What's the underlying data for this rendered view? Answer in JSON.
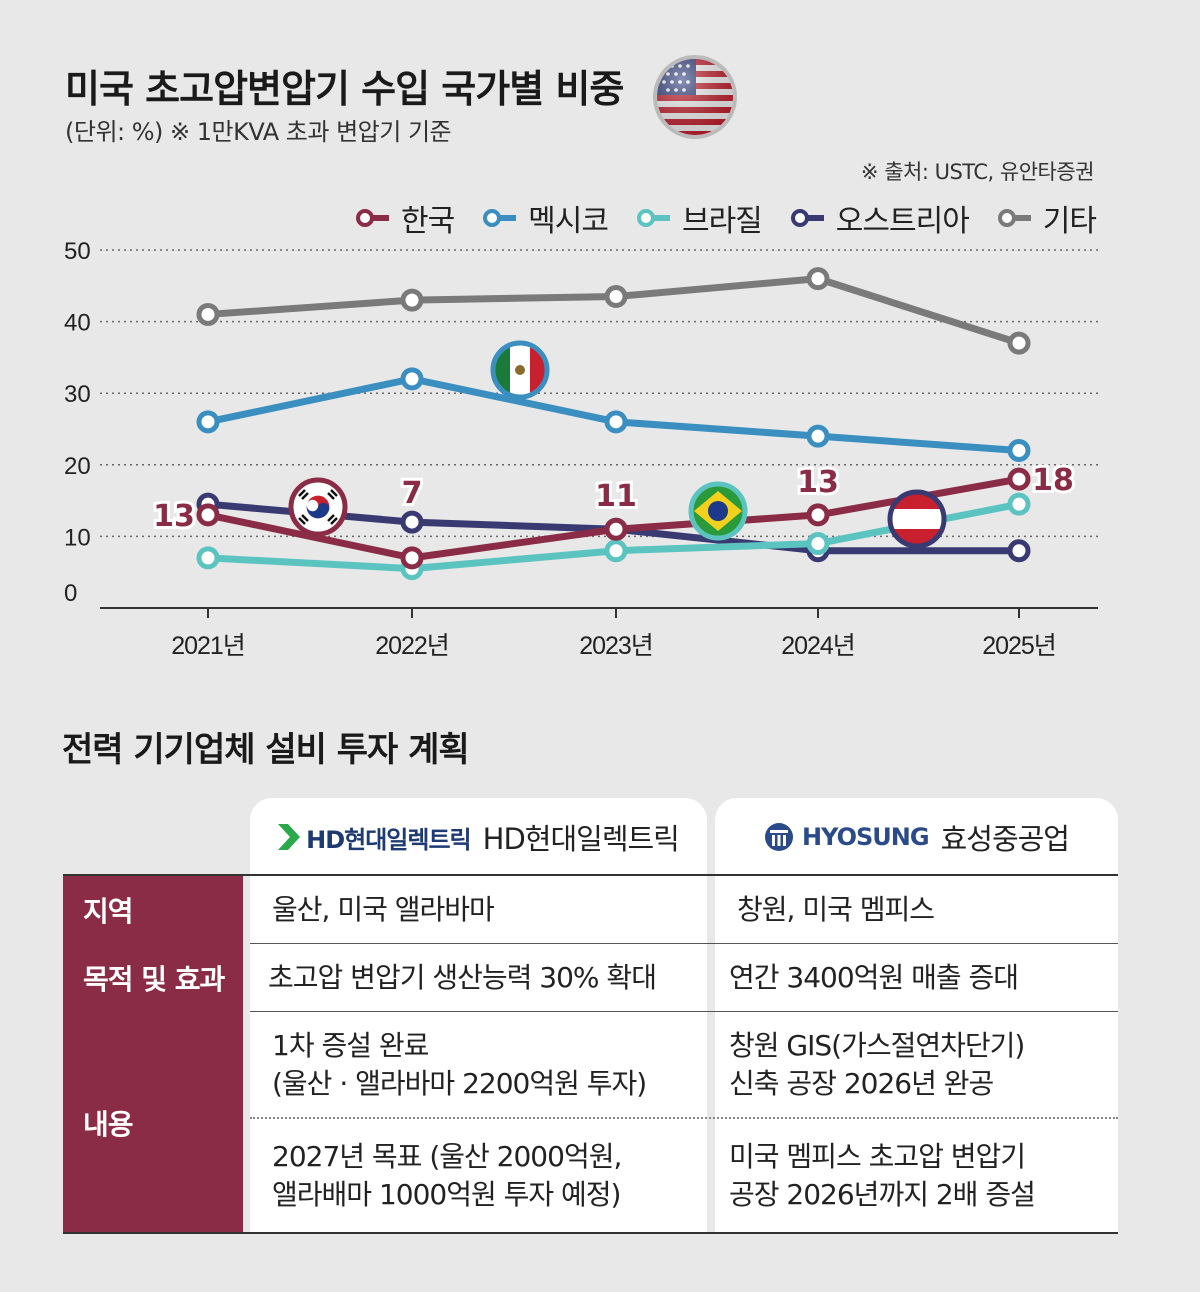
{
  "title": "미국 초고압변압기 수입 국가별 비중",
  "subtitle": "(단위: %) ※ 1만KVA 초과 변압기 기준",
  "source": "※ 출처: USTC, 유안타증권",
  "chart_data": {
    "type": "line",
    "categories": [
      "2021년",
      "2022년",
      "2023년",
      "2024년",
      "2025년"
    ],
    "ylim": [
      0,
      50
    ],
    "yticks": [
      "0",
      "10",
      "20",
      "30",
      "40",
      "50"
    ],
    "grid": true,
    "legend_position": "top-right",
    "series": [
      {
        "name": "한국",
        "color": "#8b2c46",
        "values": [
          13,
          7,
          11,
          13,
          18
        ],
        "labels": [
          "13",
          "7",
          "11",
          "13",
          "18"
        ]
      },
      {
        "name": "멕시코",
        "color": "#3a8fc0",
        "values": [
          26,
          32,
          26,
          24,
          22
        ]
      },
      {
        "name": "브라질",
        "color": "#5cc4c0",
        "values": [
          7,
          5.5,
          8,
          9,
          14.5
        ]
      },
      {
        "name": "오스트리아",
        "color": "#3a3a72",
        "values": [
          14.5,
          12,
          11,
          8,
          8
        ]
      },
      {
        "name": "기타",
        "color": "#7a7a7a",
        "values": [
          41,
          43,
          43.5,
          46,
          37
        ]
      }
    ]
  },
  "table": {
    "title": "전력 기기업체 설비 투자 계획",
    "companies": [
      {
        "logo": "HD현대일렉트릭",
        "logo_prefix": "HD",
        "name": "HD현대일렉트릭"
      },
      {
        "logo": "HYOSUNG",
        "name": "효성중공업"
      }
    ],
    "rows": {
      "region": {
        "label": "지역",
        "c1": "울산, 미국 앨라바마",
        "c2": "창원, 미국 멤피스"
      },
      "purpose": {
        "label": "목적 및 효과",
        "c1": "초고압 변압기 생산능력 30% 확대",
        "c2": "연간 3400억원 매출 증대"
      },
      "content": {
        "label": "내용",
        "c1a": [
          "1차 증설 완료",
          "(울산 · 앨라바마 2200억원 투자)"
        ],
        "c2a": [
          "창원 GIS(가스절연차단기)",
          "신축 공장 2026년 완공"
        ],
        "c1b": [
          "2027년 목표 (울산 2000억원,",
          "앨라배마 1000억원 투자 예정)"
        ],
        "c2b": [
          "미국 멤피스 초고압 변압기",
          "공장 2026년까지 2배 증설"
        ]
      }
    }
  }
}
